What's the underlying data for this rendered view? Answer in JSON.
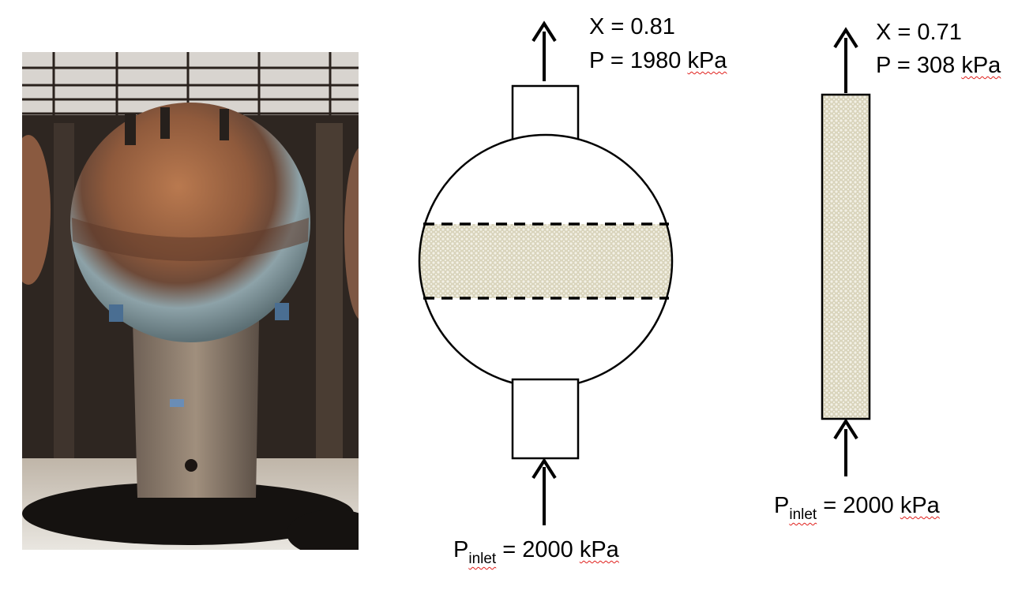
{
  "photo": {
    "subject": "spherical reactor vessel photograph"
  },
  "spherical_reactor": {
    "outlet_x": "X = 0.81",
    "outlet_p_prefix": "P = 1980 ",
    "outlet_p_unit": "kPa",
    "inlet_p_letter": "P",
    "inlet_p_sub": "inlet",
    "inlet_p_value": " = 2000 ",
    "inlet_p_unit": "kPa"
  },
  "tubular_reactor": {
    "outlet_x": "X = 0.71",
    "outlet_p_prefix": "P = 308 ",
    "outlet_p_unit": "kPa",
    "inlet_p_letter": "P",
    "inlet_p_sub": "inlet",
    "inlet_p_value": " = 2000 ",
    "inlet_p_unit": "kPa"
  },
  "colors": {
    "catalyst_fill": "#d9d4bc",
    "catalyst_pattern": "#f3f1e6",
    "line": "#000000",
    "spellcheck_underline": "#e0201c"
  }
}
